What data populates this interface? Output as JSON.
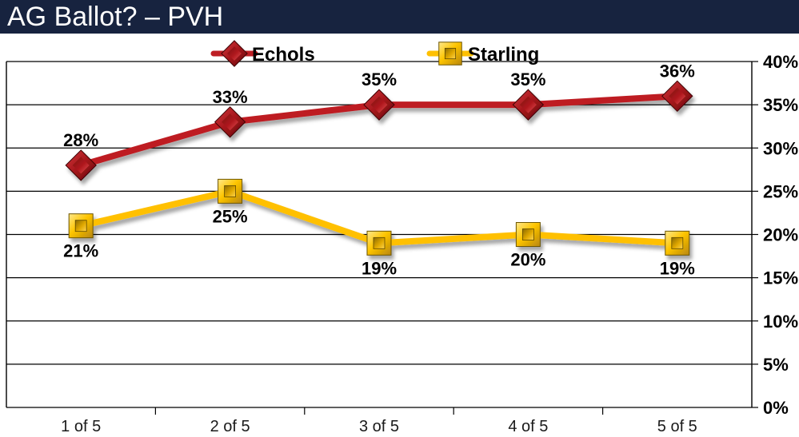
{
  "title_bar": {
    "title": "AG Ballot? – PVH"
  },
  "colors": {
    "title_bar_bg": "#17233F",
    "title_text": "#FFFFFF",
    "echols_line": "#BE1E24",
    "starling_line": "#FFC000",
    "grid_line": "#000000",
    "data_label": "#000000",
    "axis_label": "#000000",
    "background": "#FFFFFF"
  },
  "chart_data": {
    "type": "line",
    "title": "AG Ballot? – PVH",
    "categories": [
      "1 of 5",
      "2 of 5",
      "3 of 5",
      "4 of 5",
      "5 of 5"
    ],
    "series": [
      {
        "name": "Echols",
        "color": "#BE1E24",
        "marker": "diamond",
        "label_position": "above",
        "values": [
          28,
          33,
          35,
          35,
          36
        ],
        "labels": [
          "28%",
          "33%",
          "35%",
          "35%",
          "36%"
        ]
      },
      {
        "name": "Starling",
        "color": "#FFC000",
        "marker": "square",
        "label_position": "below",
        "values": [
          21,
          25,
          19,
          20,
          19
        ],
        "labels": [
          "21%",
          "25%",
          "19%",
          "20%",
          "19%"
        ]
      }
    ],
    "y_axis": {
      "min": 0,
      "max": 40,
      "step": 5,
      "side": "right",
      "tick_labels": [
        "0%",
        "5%",
        "10%",
        "15%",
        "20%",
        "25%",
        "30%",
        "35%",
        "40%"
      ]
    },
    "x_axis": {
      "tick_labels": [
        "1 of 5",
        "2 of 5",
        "3 of 5",
        "4 of 5",
        "5 of 5"
      ]
    },
    "grid": true,
    "legend_position": "top-center"
  }
}
